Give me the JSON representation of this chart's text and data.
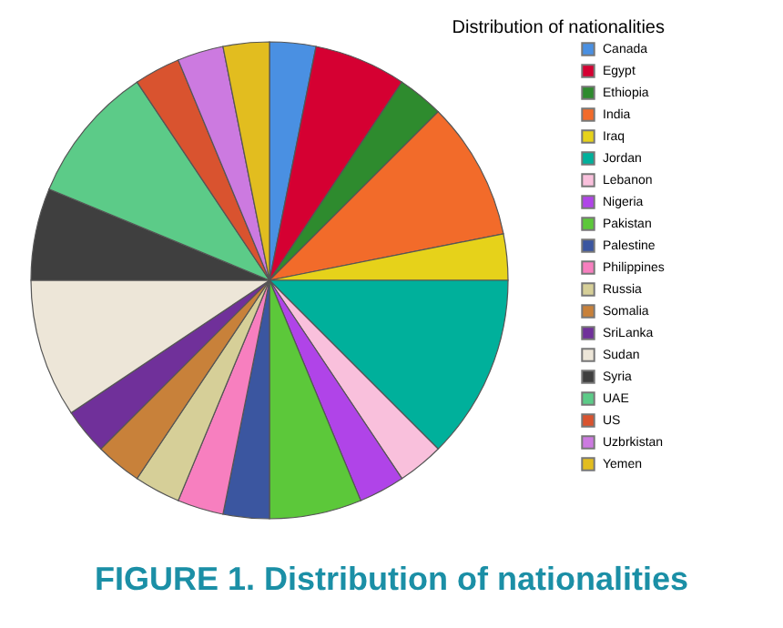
{
  "chart_data": {
    "type": "pie",
    "title": "Distribution of nationalities",
    "categories": [
      "Canada",
      "Egypt",
      "Ethiopia",
      "India",
      "Iraq",
      "Jordan",
      "Lebanon",
      "Nigeria",
      "Pakistan",
      "Palestine",
      "Philippines",
      "Russia",
      "Somalia",
      "SriLanka",
      "Sudan",
      "Syria",
      "UAE",
      "US",
      "Uzbrkistan",
      "Yemen"
    ],
    "values": [
      3.125,
      6.25,
      3.125,
      9.375,
      3.125,
      12.5,
      3.125,
      3.125,
      6.25,
      3.125,
      3.125,
      3.125,
      3.125,
      3.125,
      9.375,
      6.25,
      9.375,
      3.125,
      3.125,
      3.125
    ],
    "colors": [
      "#4a90e2",
      "#d50032",
      "#2e8b2e",
      "#f26b2a",
      "#e6d21a",
      "#00b09b",
      "#f9c0dc",
      "#b044e8",
      "#5cc83a",
      "#3b56a0",
      "#f77fbf",
      "#d6cf98",
      "#c8813a",
      "#70309a",
      "#ede6d8",
      "#3f3f3f",
      "#5ccb88",
      "#d9532f",
      "#cc7ae0",
      "#e2bd1f"
    ],
    "legend": "right",
    "annotations": [
      "FIGURE 1. Distribution of nationalities"
    ]
  }
}
